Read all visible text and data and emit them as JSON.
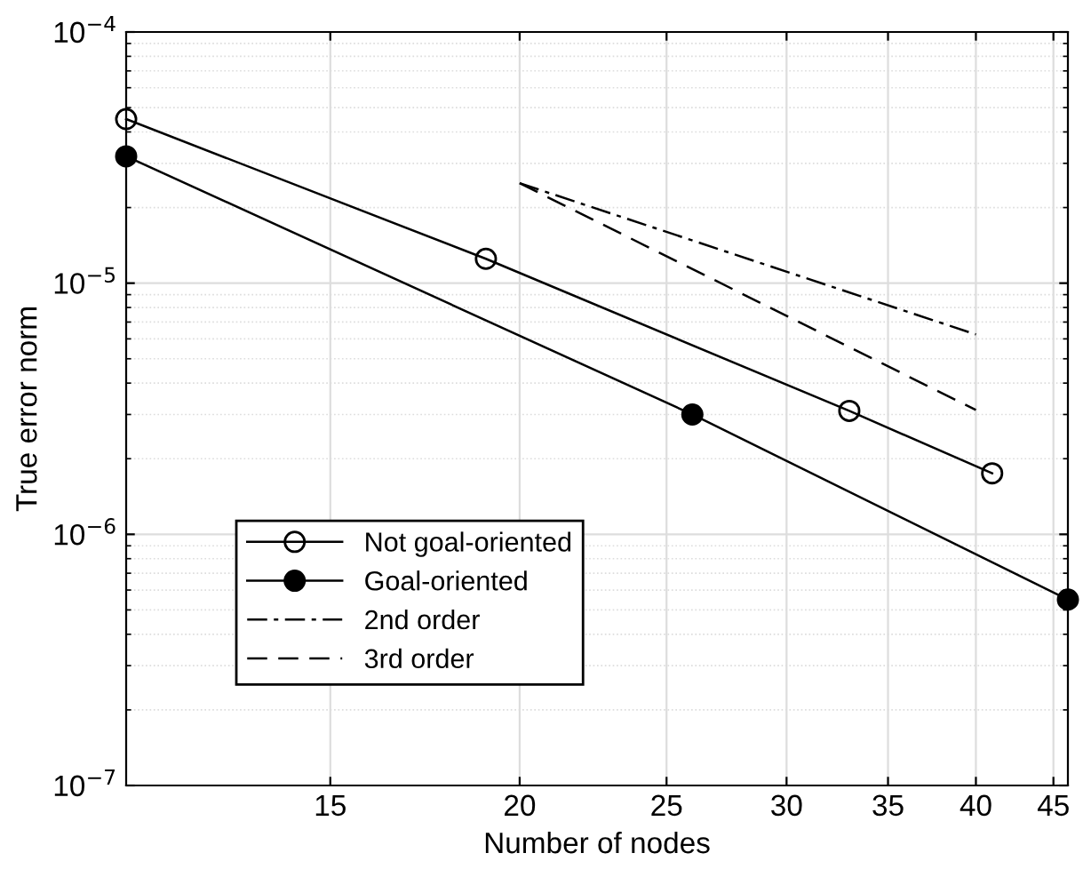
{
  "chart_data": {
    "type": "line",
    "xlabel": "Number of nodes",
    "ylabel": "True error norm",
    "log": "xy",
    "xlim": [
      11,
      46
    ],
    "ylim": [
      1e-07,
      0.0001
    ],
    "xticks": [
      15,
      20,
      25,
      30,
      35,
      40,
      45
    ],
    "yticks": [
      {
        "value": 1e-07,
        "label": "10$^{−7}$"
      },
      {
        "value": 1e-06,
        "label": "10$^{−6}$"
      },
      {
        "value": 1e-05,
        "label": "10$^{−5}$"
      },
      {
        "value": 0.0001,
        "label": "10$^{−4}$"
      }
    ],
    "grid": true,
    "legend": "bottom left",
    "series": [
      {
        "name": "Not goal-oriented",
        "color": "#000000",
        "marker": "circle",
        "line_style": "solid",
        "x": [
          11,
          19,
          33,
          41
        ],
        "values": [
          4.5e-05,
          1.25e-05,
          3.1e-06,
          1.75e-06
        ]
      },
      {
        "name": "Goal-oriented",
        "color": "#000000",
        "marker": "circle",
        "line_style": "solid",
        "x": [
          11,
          26,
          46
        ],
        "values": [
          3.2e-05,
          3e-06,
          5.5e-07
        ]
      },
      {
        "name": "2nd order",
        "color": "#000000",
        "marker": "none",
        "line_style": "dashdot",
        "x": [
          20,
          40
        ],
        "values": [
          2.5e-05,
          6.25e-06
        ]
      },
      {
        "name": "3rd order",
        "color": "#000000",
        "marker": "none",
        "line_style": "dashed",
        "x": [
          20,
          40
        ],
        "values": [
          2.5e-05,
          3.125e-06
        ]
      }
    ]
  }
}
